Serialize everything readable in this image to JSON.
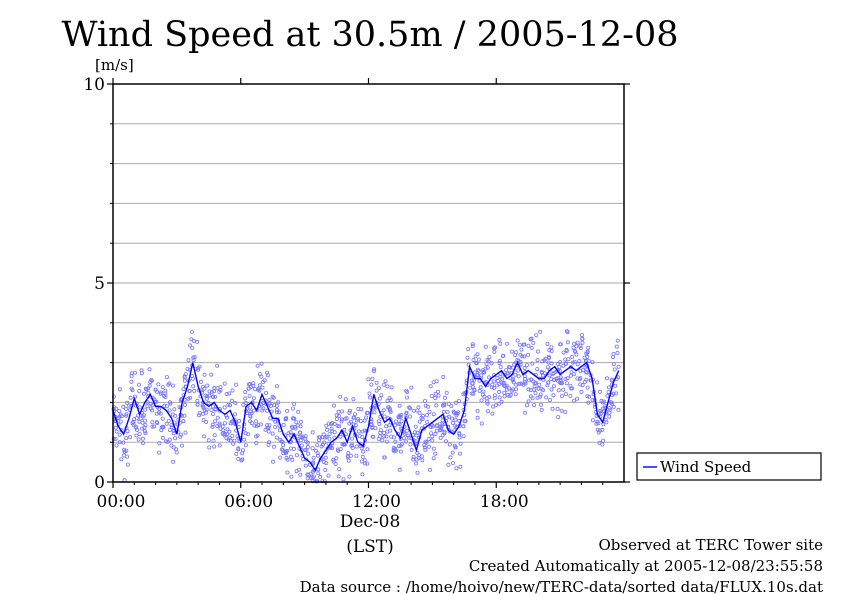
{
  "chart_data": {
    "type": "line",
    "title": "Wind Speed at 30.5m / 2005-12-08",
    "ylabel": "[m/s]",
    "xlabel": "(LST)",
    "ylim": [
      0,
      10
    ],
    "xlim_hours": [
      0,
      24
    ],
    "y_ticks": [
      "0",
      "5",
      "10"
    ],
    "x_ticks": [
      {
        "hour": 0,
        "label": "00:00"
      },
      {
        "hour": 6,
        "label": "06:00"
      },
      {
        "hour": 12,
        "label": "12:00"
      },
      {
        "hour": 18,
        "label": "18:00"
      }
    ],
    "date_label": "Dec-08",
    "grid": true,
    "legend": {
      "position": "right",
      "label": "Wind Speed"
    },
    "series": [
      {
        "name": "Wind Speed",
        "color": "#0000ff",
        "x_hours": [
          0.0,
          0.25,
          0.5,
          0.75,
          1.0,
          1.25,
          1.5,
          1.75,
          2.0,
          2.25,
          2.5,
          2.75,
          3.0,
          3.25,
          3.5,
          3.75,
          4.0,
          4.25,
          4.5,
          4.75,
          5.0,
          5.25,
          5.5,
          5.75,
          6.0,
          6.25,
          6.5,
          6.75,
          7.0,
          7.25,
          7.5,
          7.75,
          8.0,
          8.25,
          8.5,
          8.75,
          9.0,
          9.25,
          9.5,
          9.75,
          10.0,
          10.25,
          10.5,
          10.75,
          11.0,
          11.25,
          11.5,
          11.75,
          12.0,
          12.25,
          12.5,
          12.75,
          13.0,
          13.25,
          13.5,
          13.75,
          14.0,
          14.25,
          14.5,
          14.75,
          15.0,
          15.25,
          15.5,
          15.75,
          16.0,
          16.25,
          16.5,
          16.75,
          17.0,
          17.25,
          17.5,
          17.75,
          18.0,
          18.25,
          18.5,
          18.75,
          19.0,
          19.25,
          19.5,
          19.75,
          20.0,
          20.25,
          20.5,
          20.75,
          21.0,
          21.25,
          21.5,
          21.75,
          22.0,
          22.25,
          22.5,
          22.75,
          23.0,
          23.25,
          23.5,
          23.75
        ],
        "values": [
          1.8,
          1.4,
          1.2,
          1.6,
          2.1,
          1.7,
          2.0,
          2.2,
          1.9,
          1.9,
          1.8,
          1.6,
          1.2,
          2.0,
          2.4,
          3.0,
          2.4,
          2.0,
          1.9,
          2.0,
          1.8,
          1.7,
          1.8,
          1.5,
          1.0,
          1.9,
          2.0,
          1.8,
          2.2,
          1.9,
          1.6,
          1.6,
          1.2,
          1.0,
          1.2,
          0.9,
          0.6,
          0.5,
          0.3,
          0.6,
          0.8,
          1.0,
          1.1,
          1.3,
          1.0,
          1.4,
          1.0,
          0.9,
          1.4,
          2.2,
          1.8,
          1.5,
          1.6,
          1.3,
          1.1,
          1.6,
          1.2,
          0.8,
          1.3,
          1.4,
          1.5,
          1.6,
          1.7,
          1.3,
          1.2,
          1.4,
          1.8,
          2.9,
          2.6,
          2.6,
          2.4,
          2.6,
          2.7,
          2.8,
          2.6,
          2.7,
          3.0,
          2.7,
          2.8,
          2.7,
          2.6,
          2.6,
          2.8,
          2.9,
          2.7,
          2.8,
          2.9,
          2.8,
          2.9,
          3.0,
          2.6,
          1.7,
          1.5,
          2.0,
          2.5,
          2.8
        ]
      }
    ]
  },
  "footer": {
    "line1": "Observed at TERC Tower site",
    "line2": "Created Automatically at 2005-12-08/23:55:58",
    "line3": "Data source : /home/hoivo/new/TERC-data/sorted  data/FLUX.10s.dat"
  }
}
